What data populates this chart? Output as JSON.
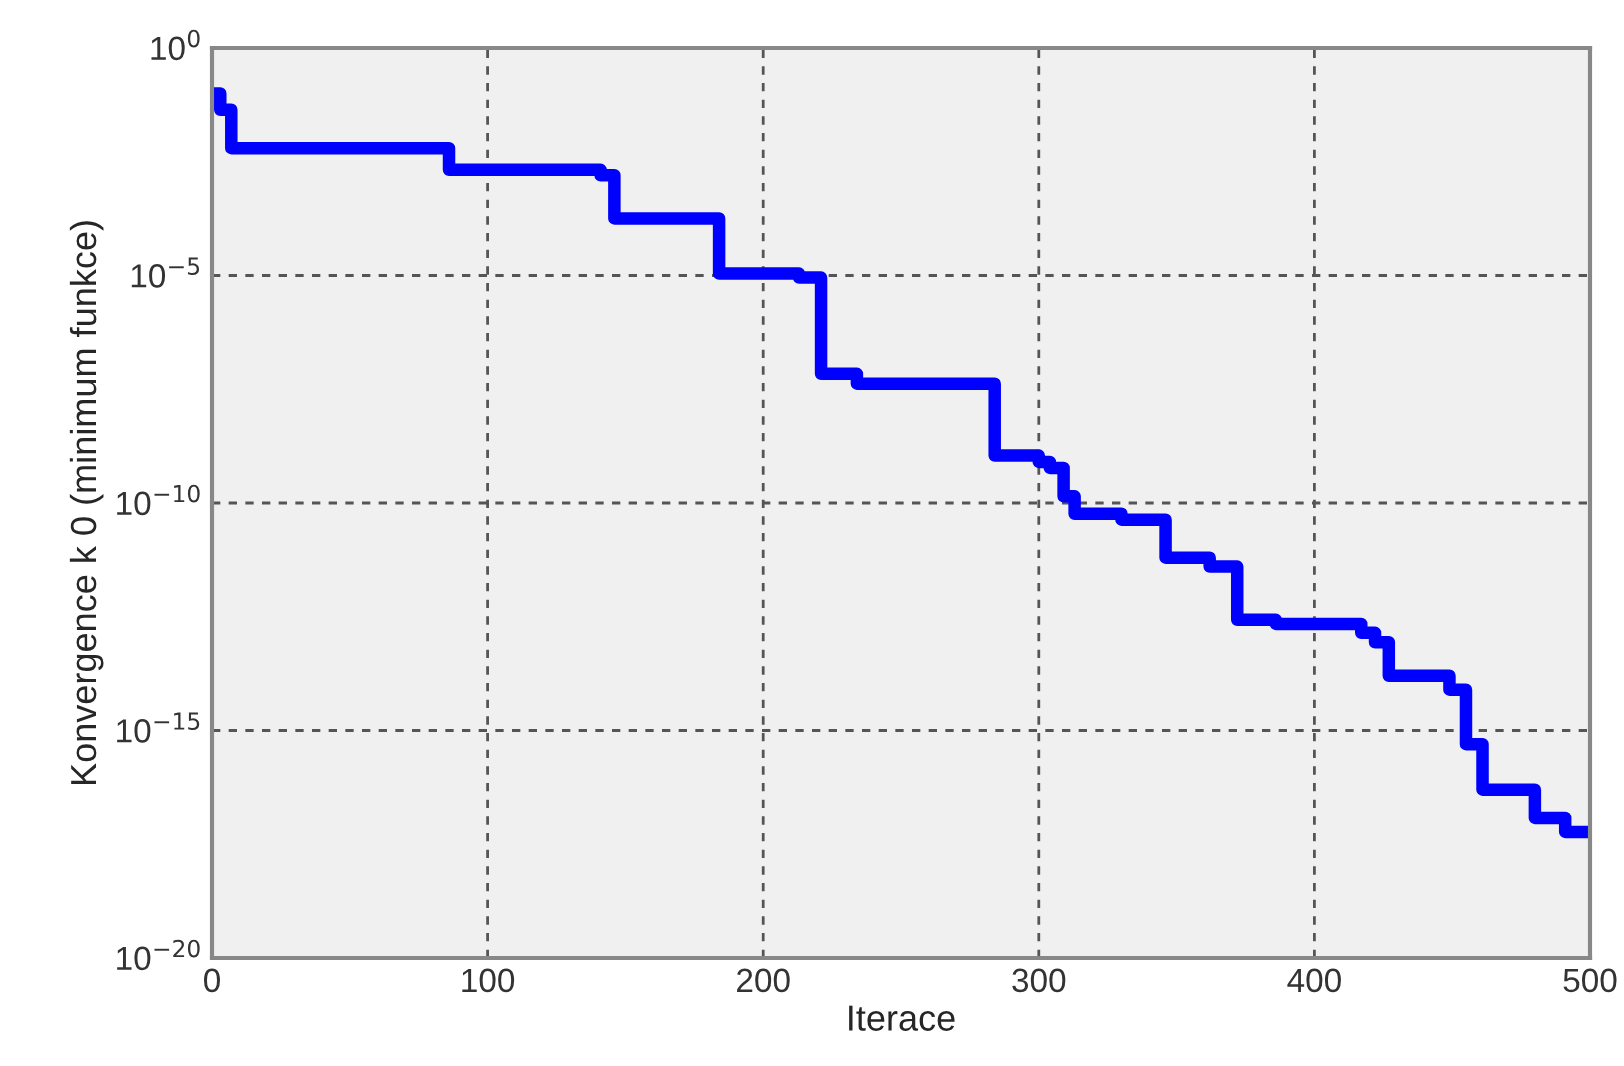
{
  "chart_data": {
    "type": "step",
    "xlabel": "Iterace",
    "ylabel": "Konvergence k 0 (minimum funkce)",
    "x": [
      0,
      3,
      7,
      86,
      141,
      146,
      184,
      213,
      221,
      234,
      284,
      300,
      304,
      309,
      313,
      330,
      346,
      362,
      372,
      386,
      417,
      422,
      427,
      449,
      455,
      461,
      480,
      491,
      500
    ],
    "series": [
      {
        "color": "#0000ff",
        "values": [
          0.1,
          0.044,
          0.0063,
          0.0021,
          0.0016,
          0.00018,
          1.1e-05,
          9e-06,
          6.9e-08,
          4.2e-08,
          1.1e-09,
          8e-10,
          5.9e-10,
          1.4e-10,
          5.8e-11,
          4.3e-11,
          6.3e-12,
          4e-12,
          2.7e-13,
          2.2e-13,
          1.4e-13,
          8.7e-14,
          1.6e-14,
          7.9e-15,
          5e-16,
          5e-17,
          1.2e-17,
          5.9e-18,
          5.9e-18
        ]
      }
    ],
    "log": "y",
    "xlim": [
      0,
      500
    ],
    "xticks": [
      0,
      100,
      200,
      300,
      400,
      500
    ],
    "ylim": [
      1e-20,
      1
    ],
    "yticks": [
      {
        "value": 1e-20,
        "label": "10$^{−20}$"
      },
      {
        "value": 1e-15,
        "label": "10$^{−15}$"
      },
      {
        "value": 1e-10,
        "label": "10$^{−10}$"
      },
      {
        "value": 1e-05,
        "label": "10$^{−5}$"
      },
      {
        "value": 1,
        "label": "10$^{0}$"
      }
    ],
    "grid": true,
    "line_style": "solid",
    "marker": "none"
  }
}
